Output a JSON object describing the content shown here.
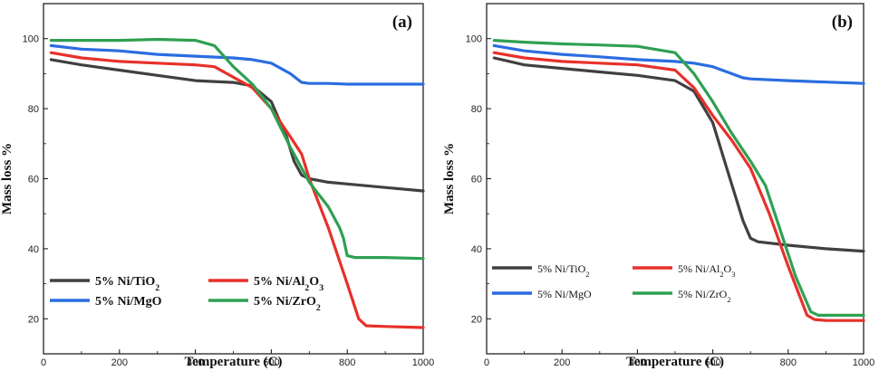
{
  "chart_data": [
    {
      "type": "line",
      "panel_label": "(a)",
      "xlabel": "Temperature (C)",
      "ylabel": "Mass loss %",
      "xlim": [
        0,
        1000
      ],
      "ylim": [
        10,
        110
      ],
      "xticks": [
        0,
        200,
        400,
        600,
        800,
        1000
      ],
      "yticks": [
        20,
        40,
        60,
        80,
        100
      ],
      "grid": false,
      "legend": "bottom-left",
      "series": [
        {
          "name": "5% Ni/TiO2",
          "label": "5% Ni/TiO",
          "sub": "2",
          "label_rest": "",
          "color": "#404040",
          "x": [
            20,
            100,
            200,
            300,
            400,
            500,
            550,
            600,
            640,
            660,
            680,
            700,
            750,
            800,
            900,
            1000
          ],
          "y": [
            94,
            92.5,
            91,
            89.5,
            88,
            87.5,
            86.5,
            82,
            72,
            65,
            61,
            60,
            59,
            58.5,
            57.5,
            56.5
          ]
        },
        {
          "name": "5% Ni/Al2O3",
          "label": "5% Ni/Al",
          "sub": "2",
          "label_rest": "O",
          "sub2": "3",
          "color": "#e8302a",
          "x": [
            20,
            100,
            200,
            300,
            400,
            450,
            500,
            550,
            600,
            650,
            680,
            700,
            750,
            800,
            830,
            850,
            900,
            1000
          ],
          "y": [
            96,
            94.5,
            93.5,
            93,
            92.5,
            92,
            89,
            86,
            80,
            72,
            67,
            60,
            46,
            30,
            20,
            18,
            17.8,
            17.5
          ]
        },
        {
          "name": "5% Ni/MgO",
          "label": "5% Ni/MgO",
          "sub": "",
          "label_rest": "",
          "color": "#2b6de0",
          "x": [
            20,
            100,
            200,
            300,
            400,
            500,
            550,
            600,
            650,
            680,
            700,
            750,
            800,
            900,
            1000
          ],
          "y": [
            98,
            97,
            96.5,
            95.5,
            95,
            94.5,
            94,
            93,
            90,
            87.5,
            87.2,
            87.2,
            87,
            87,
            87
          ]
        },
        {
          "name": "5% Ni/ZrO2",
          "label": "5% Ni/ZrO",
          "sub": "2",
          "label_rest": "",
          "color": "#2fa052",
          "x": [
            20,
            100,
            200,
            300,
            400,
            450,
            500,
            550,
            600,
            650,
            700,
            750,
            780,
            790,
            800,
            820,
            900,
            1000
          ],
          "y": [
            99.5,
            99.5,
            99.5,
            99.8,
            99.5,
            98,
            92,
            87,
            80,
            69,
            59,
            52,
            46,
            43,
            38,
            37.5,
            37.5,
            37.2
          ]
        }
      ]
    },
    {
      "type": "line",
      "panel_label": "(b)",
      "xlabel": "Temperature (C)",
      "ylabel": "Mass loss %",
      "xlim": [
        0,
        1000
      ],
      "ylim": [
        10,
        110
      ],
      "xticks": [
        0,
        200,
        400,
        600,
        800,
        1000
      ],
      "yticks": [
        20,
        40,
        60,
        80,
        100
      ],
      "grid": false,
      "legend": "bottom-left",
      "series": [
        {
          "name": "5% Ni/TiO2",
          "label": "5% Ni/TiO",
          "sub": "2",
          "label_rest": "",
          "color": "#404040",
          "x": [
            20,
            100,
            200,
            300,
            400,
            500,
            550,
            600,
            640,
            680,
            700,
            720,
            800,
            900,
            1000
          ],
          "y": [
            94.5,
            92.5,
            91.5,
            90.5,
            89.5,
            88,
            85,
            76,
            62,
            48,
            43,
            42,
            41,
            40,
            39.3
          ]
        },
        {
          "name": "5% Ni/Al2O3",
          "label": "5% Ni/Al",
          "sub": "2",
          "label_rest": "O",
          "sub2": "3",
          "color": "#e8302a",
          "x": [
            20,
            100,
            200,
            300,
            400,
            500,
            550,
            600,
            650,
            700,
            750,
            800,
            850,
            870,
            900,
            1000
          ],
          "y": [
            96,
            94.5,
            93.5,
            93,
            92.5,
            91,
            86,
            78,
            71,
            63,
            50,
            35,
            21,
            19.8,
            19.5,
            19.5
          ]
        },
        {
          "name": "5% Ni/MgO",
          "label": "5% Ni/MgO",
          "sub": "",
          "label_rest": "",
          "color": "#2b6de0",
          "x": [
            20,
            100,
            200,
            300,
            400,
            500,
            550,
            600,
            650,
            680,
            700,
            800,
            900,
            1000
          ],
          "y": [
            98,
            96.5,
            95.5,
            94.8,
            94,
            93.5,
            93,
            92,
            90,
            88.8,
            88.5,
            88,
            87.6,
            87.2
          ]
        },
        {
          "name": "5% Ni/ZrO2",
          "label": "5% Ni/ZrO",
          "sub": "2",
          "label_rest": "",
          "color": "#2fa052",
          "x": [
            20,
            100,
            200,
            300,
            400,
            500,
            550,
            600,
            650,
            700,
            740,
            780,
            820,
            860,
            880,
            900,
            1000
          ],
          "y": [
            99.5,
            99,
            98.5,
            98.2,
            97.8,
            96,
            90,
            82,
            73,
            65,
            58,
            45,
            32,
            22,
            21,
            21,
            21
          ]
        }
      ]
    }
  ]
}
